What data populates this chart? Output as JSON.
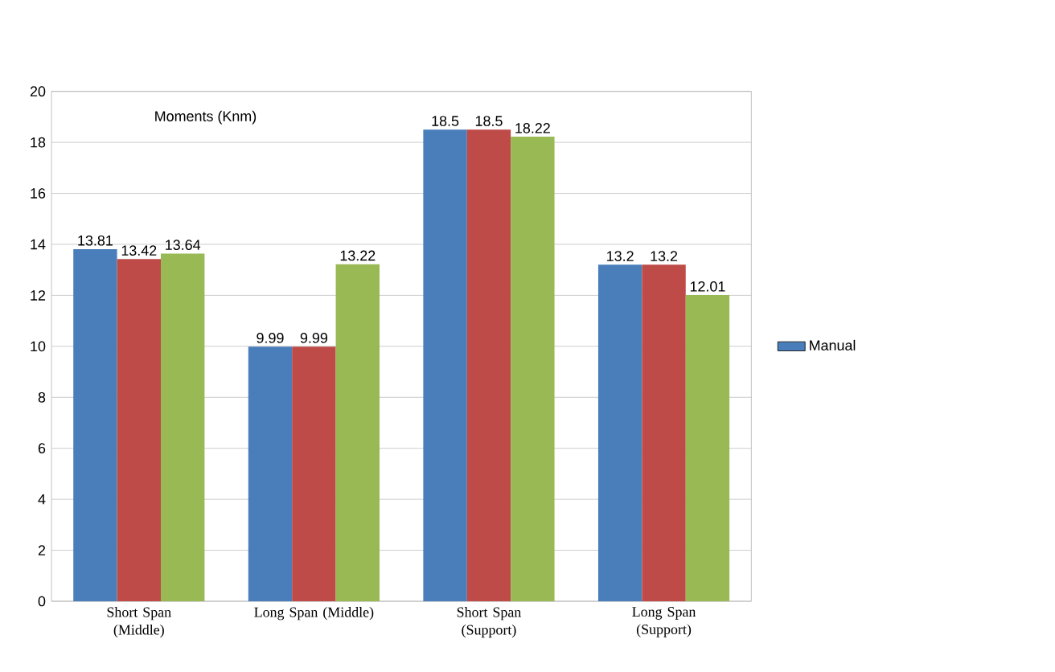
{
  "chart_data": {
    "type": "bar",
    "title": "Moments (Knm)",
    "categories": [
      "Short Span (Middle)",
      "Long Span (Middle)",
      "Short Span (Support)",
      "Long Span (Support)"
    ],
    "series": [
      {
        "name": "Manual",
        "color": "#4a7ebb",
        "values": [
          13.81,
          9.99,
          18.5,
          13.2
        ]
      },
      {
        "color": "#be4b48",
        "values": [
          13.42,
          9.99,
          18.5,
          13.2
        ]
      },
      {
        "color": "#98b954",
        "values": [
          13.64,
          13.22,
          18.22,
          12.01
        ]
      }
    ],
    "ylim": [
      0,
      20
    ],
    "yticks": [
      0,
      2,
      4,
      6,
      8,
      10,
      12,
      14,
      16,
      18,
      20
    ],
    "grid": "y",
    "legend": "right",
    "data_labels": true
  }
}
